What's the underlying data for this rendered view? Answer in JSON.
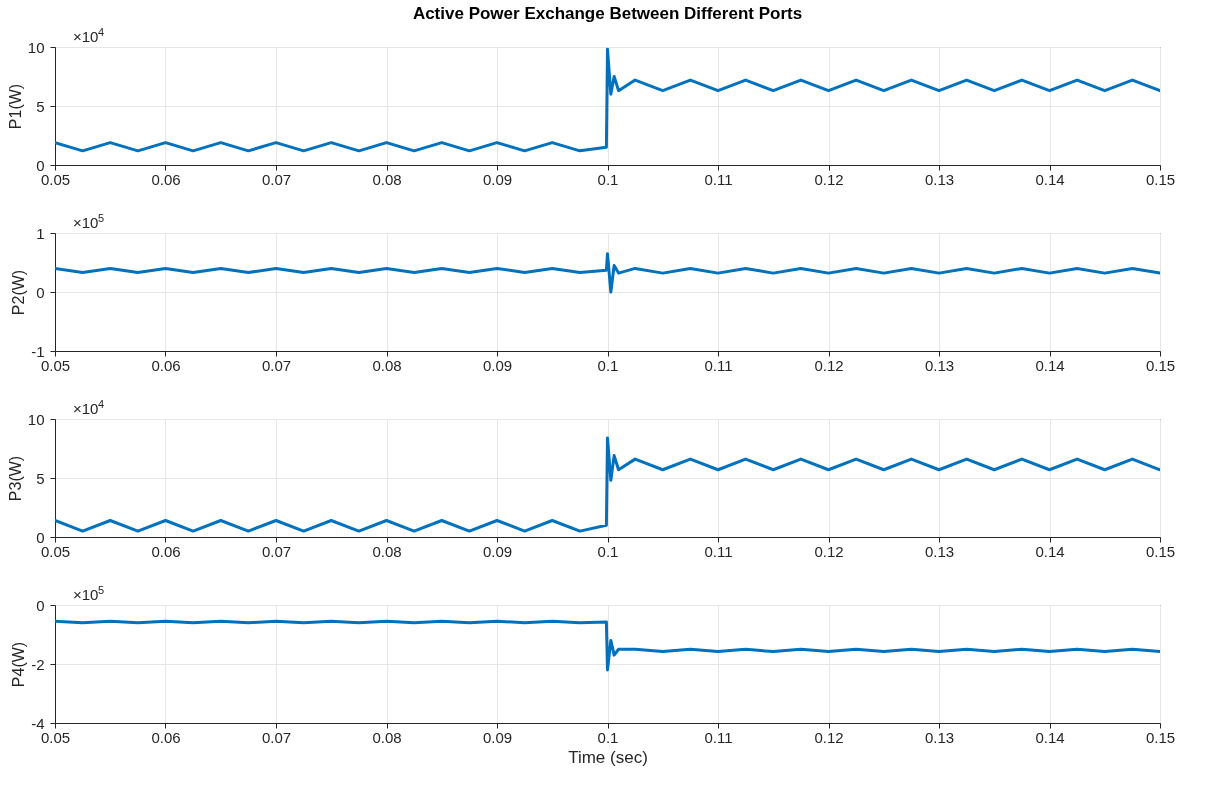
{
  "chart_data": [
    {
      "type": "line",
      "title": "Active Power Exchange Between Different Ports",
      "ylabel": "P1(W)",
      "annotations": [
        "×10$^{4}$"
      ],
      "xlim": [
        0.05,
        0.15
      ],
      "xticks": [
        0.05,
        0.06,
        0.07,
        0.08,
        0.09,
        0.1,
        0.11,
        0.12,
        0.13,
        0.14,
        0.15
      ],
      "ylim": [
        0,
        10
      ],
      "yticks": [
        0,
        5,
        10
      ],
      "grid": true,
      "line_style": "solid",
      "x": [
        0.05,
        0.0525,
        0.055,
        0.0575,
        0.06,
        0.0625,
        0.065,
        0.0675,
        0.07,
        0.0725,
        0.075,
        0.0775,
        0.08,
        0.0825,
        0.085,
        0.0875,
        0.09,
        0.0925,
        0.095,
        0.0975,
        0.0999,
        0.1,
        0.1003,
        0.1006,
        0.101,
        0.1025,
        0.105,
        0.1075,
        0.11,
        0.1125,
        0.115,
        0.1175,
        0.12,
        0.1225,
        0.125,
        0.1275,
        0.13,
        0.1325,
        0.135,
        0.1375,
        0.14,
        0.1425,
        0.145,
        0.1475,
        0.15
      ],
      "series": [
        {
          "color": "#0072bd",
          "values": [
            1.9,
            1.2,
            1.9,
            1.2,
            1.9,
            1.2,
            1.9,
            1.2,
            1.9,
            1.2,
            1.9,
            1.2,
            1.9,
            1.2,
            1.9,
            1.2,
            1.9,
            1.2,
            1.9,
            1.2,
            1.5,
            9.8,
            6.0,
            7.5,
            6.3,
            7.2,
            6.3,
            7.2,
            6.3,
            7.2,
            6.3,
            7.2,
            6.3,
            7.2,
            6.3,
            7.2,
            6.3,
            7.2,
            6.3,
            7.2,
            6.3,
            7.2,
            6.3,
            7.2,
            6.3
          ]
        }
      ]
    },
    {
      "type": "line",
      "ylabel": "P2(W)",
      "annotations": [
        "×10$^{5}$"
      ],
      "xlim": [
        0.05,
        0.15
      ],
      "xticks": [
        0.05,
        0.06,
        0.07,
        0.08,
        0.09,
        0.1,
        0.11,
        0.12,
        0.13,
        0.14,
        0.15
      ],
      "ylim": [
        -1,
        1
      ],
      "yticks": [
        -1,
        0,
        1
      ],
      "grid": true,
      "line_style": "solid",
      "x": [
        0.05,
        0.0525,
        0.055,
        0.0575,
        0.06,
        0.0625,
        0.065,
        0.0675,
        0.07,
        0.0725,
        0.075,
        0.0775,
        0.08,
        0.0825,
        0.085,
        0.0875,
        0.09,
        0.0925,
        0.095,
        0.0975,
        0.0999,
        0.1,
        0.1003,
        0.1006,
        0.101,
        0.1025,
        0.105,
        0.1075,
        0.11,
        0.1125,
        0.115,
        0.1175,
        0.12,
        0.1225,
        0.125,
        0.1275,
        0.13,
        0.1325,
        0.135,
        0.1375,
        0.14,
        0.1425,
        0.145,
        0.1475,
        0.15
      ],
      "series": [
        {
          "color": "#0072bd",
          "values": [
            0.4,
            0.33,
            0.4,
            0.33,
            0.4,
            0.33,
            0.4,
            0.33,
            0.4,
            0.33,
            0.4,
            0.33,
            0.4,
            0.33,
            0.4,
            0.33,
            0.4,
            0.33,
            0.4,
            0.33,
            0.37,
            0.65,
            0.0,
            0.45,
            0.32,
            0.4,
            0.32,
            0.4,
            0.32,
            0.4,
            0.32,
            0.4,
            0.32,
            0.4,
            0.32,
            0.4,
            0.32,
            0.4,
            0.32,
            0.4,
            0.32,
            0.4,
            0.32,
            0.4,
            0.32
          ]
        }
      ]
    },
    {
      "type": "line",
      "ylabel": "P3(W)",
      "annotations": [
        "×10$^{4}$"
      ],
      "xlim": [
        0.05,
        0.15
      ],
      "xticks": [
        0.05,
        0.06,
        0.07,
        0.08,
        0.09,
        0.1,
        0.11,
        0.12,
        0.13,
        0.14,
        0.15
      ],
      "ylim": [
        0,
        10
      ],
      "yticks": [
        0,
        5,
        10
      ],
      "grid": true,
      "line_style": "solid",
      "x": [
        0.05,
        0.0525,
        0.055,
        0.0575,
        0.06,
        0.0625,
        0.065,
        0.0675,
        0.07,
        0.0725,
        0.075,
        0.0775,
        0.08,
        0.0825,
        0.085,
        0.0875,
        0.09,
        0.0925,
        0.095,
        0.0975,
        0.0999,
        0.1,
        0.1003,
        0.1006,
        0.101,
        0.1025,
        0.105,
        0.1075,
        0.11,
        0.1125,
        0.115,
        0.1175,
        0.12,
        0.1225,
        0.125,
        0.1275,
        0.13,
        0.1325,
        0.135,
        0.1375,
        0.14,
        0.1425,
        0.145,
        0.1475,
        0.15
      ],
      "series": [
        {
          "color": "#0072bd",
          "values": [
            1.4,
            0.5,
            1.4,
            0.5,
            1.4,
            0.5,
            1.4,
            0.5,
            1.4,
            0.5,
            1.4,
            0.5,
            1.4,
            0.5,
            1.4,
            0.5,
            1.4,
            0.5,
            1.4,
            0.5,
            1.0,
            8.4,
            4.8,
            6.9,
            5.7,
            6.6,
            5.7,
            6.6,
            5.7,
            6.6,
            5.7,
            6.6,
            5.7,
            6.6,
            5.7,
            6.6,
            5.7,
            6.6,
            5.7,
            6.6,
            5.7,
            6.6,
            5.7,
            6.6,
            5.7
          ]
        }
      ]
    },
    {
      "type": "line",
      "ylabel": "P4(W)",
      "xlabel": "Time (sec)",
      "annotations": [
        "×10$^{5}$"
      ],
      "xlim": [
        0.05,
        0.15
      ],
      "xticks": [
        0.05,
        0.06,
        0.07,
        0.08,
        0.09,
        0.1,
        0.11,
        0.12,
        0.13,
        0.14,
        0.15
      ],
      "ylim": [
        -4,
        0
      ],
      "yticks": [
        -4,
        -2,
        0
      ],
      "grid": true,
      "line_style": "solid",
      "x": [
        0.05,
        0.0525,
        0.055,
        0.0575,
        0.06,
        0.0625,
        0.065,
        0.0675,
        0.07,
        0.0725,
        0.075,
        0.0775,
        0.08,
        0.0825,
        0.085,
        0.0875,
        0.09,
        0.0925,
        0.095,
        0.0975,
        0.0999,
        0.1,
        0.1003,
        0.1006,
        0.101,
        0.1025,
        0.105,
        0.1075,
        0.11,
        0.1125,
        0.115,
        0.1175,
        0.12,
        0.1225,
        0.125,
        0.1275,
        0.13,
        0.1325,
        0.135,
        0.1375,
        0.14,
        0.1425,
        0.145,
        0.1475,
        0.15
      ],
      "series": [
        {
          "color": "#0072bd",
          "values": [
            -0.55,
            -0.6,
            -0.55,
            -0.6,
            -0.55,
            -0.6,
            -0.55,
            -0.6,
            -0.55,
            -0.6,
            -0.55,
            -0.6,
            -0.55,
            -0.6,
            -0.55,
            -0.6,
            -0.55,
            -0.6,
            -0.55,
            -0.6,
            -0.58,
            -2.2,
            -1.2,
            -1.7,
            -1.5,
            -1.5,
            -1.58,
            -1.5,
            -1.58,
            -1.5,
            -1.58,
            -1.5,
            -1.58,
            -1.5,
            -1.58,
            -1.5,
            -1.58,
            -1.5,
            -1.58,
            -1.5,
            -1.58,
            -1.5,
            -1.58,
            -1.5,
            -1.58
          ]
        }
      ]
    }
  ]
}
